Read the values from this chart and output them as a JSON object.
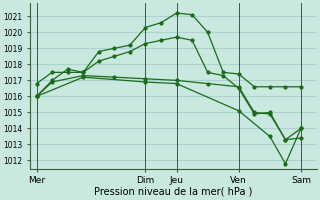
{
  "background_color": "#c8e8e0",
  "plot_bg_color": "#c8e8e0",
  "grid_color": "#aad4cc",
  "line_color": "#1a6b1a",
  "marker_color": "#1a6b1a",
  "title": "Pression niveau de la mer( hPa )",
  "ylim": [
    1011.5,
    1021.8
  ],
  "yticks": [
    1012,
    1013,
    1014,
    1015,
    1016,
    1017,
    1018,
    1019,
    1020,
    1021
  ],
  "xtick_labels": [
    "Mer",
    "Dim",
    "Jeu",
    "Ven",
    "Sam"
  ],
  "xtick_positions": [
    0,
    3.5,
    4.5,
    6.5,
    8.5
  ],
  "xlim": [
    -0.2,
    9.0
  ],
  "series1": {
    "x": [
      0,
      0.5,
      1.0,
      1.5,
      2.0,
      2.5,
      3.0,
      3.5,
      4.0,
      4.5,
      5.0,
      5.5,
      6.0,
      6.5,
      7.0,
      7.5,
      8.0,
      8.5
    ],
    "y": [
      1016.8,
      1017.5,
      1017.5,
      1017.5,
      1018.8,
      1019.0,
      1019.2,
      1020.3,
      1020.6,
      1021.2,
      1021.1,
      1020.0,
      1017.5,
      1017.4,
      1016.6,
      1016.6,
      1016.6,
      1016.6
    ]
  },
  "series2": {
    "x": [
      0,
      0.5,
      1.0,
      1.5,
      2.0,
      2.5,
      3.0,
      3.5,
      4.0,
      4.5,
      5.0,
      5.5,
      6.0,
      6.5,
      7.0,
      7.5,
      8.0,
      8.5
    ],
    "y": [
      1016.0,
      1017.0,
      1017.7,
      1017.5,
      1018.2,
      1018.5,
      1018.8,
      1019.3,
      1019.5,
      1019.7,
      1019.5,
      1017.5,
      1017.3,
      1016.5,
      1014.9,
      1015.0,
      1013.3,
      1013.4
    ]
  },
  "series3": {
    "x": [
      0,
      0.5,
      1.5,
      2.5,
      3.5,
      4.5,
      5.5,
      6.5,
      7.0,
      7.5,
      8.0,
      8.5
    ],
    "y": [
      1016.0,
      1016.9,
      1017.3,
      1017.2,
      1017.1,
      1017.0,
      1016.8,
      1016.6,
      1015.0,
      1014.9,
      1013.3,
      1014.0
    ]
  },
  "series4": {
    "x": [
      0,
      1.5,
      3.5,
      4.5,
      6.5,
      7.5,
      8.0,
      8.5
    ],
    "y": [
      1016.0,
      1017.2,
      1016.9,
      1016.8,
      1015.1,
      1013.5,
      1011.8,
      1014.0
    ]
  },
  "vlines": [
    0,
    3.5,
    4.5,
    6.5,
    8.5
  ],
  "title_fontsize": 7,
  "tick_fontsize": 5.5,
  "xlabel_fontsize": 6.5
}
